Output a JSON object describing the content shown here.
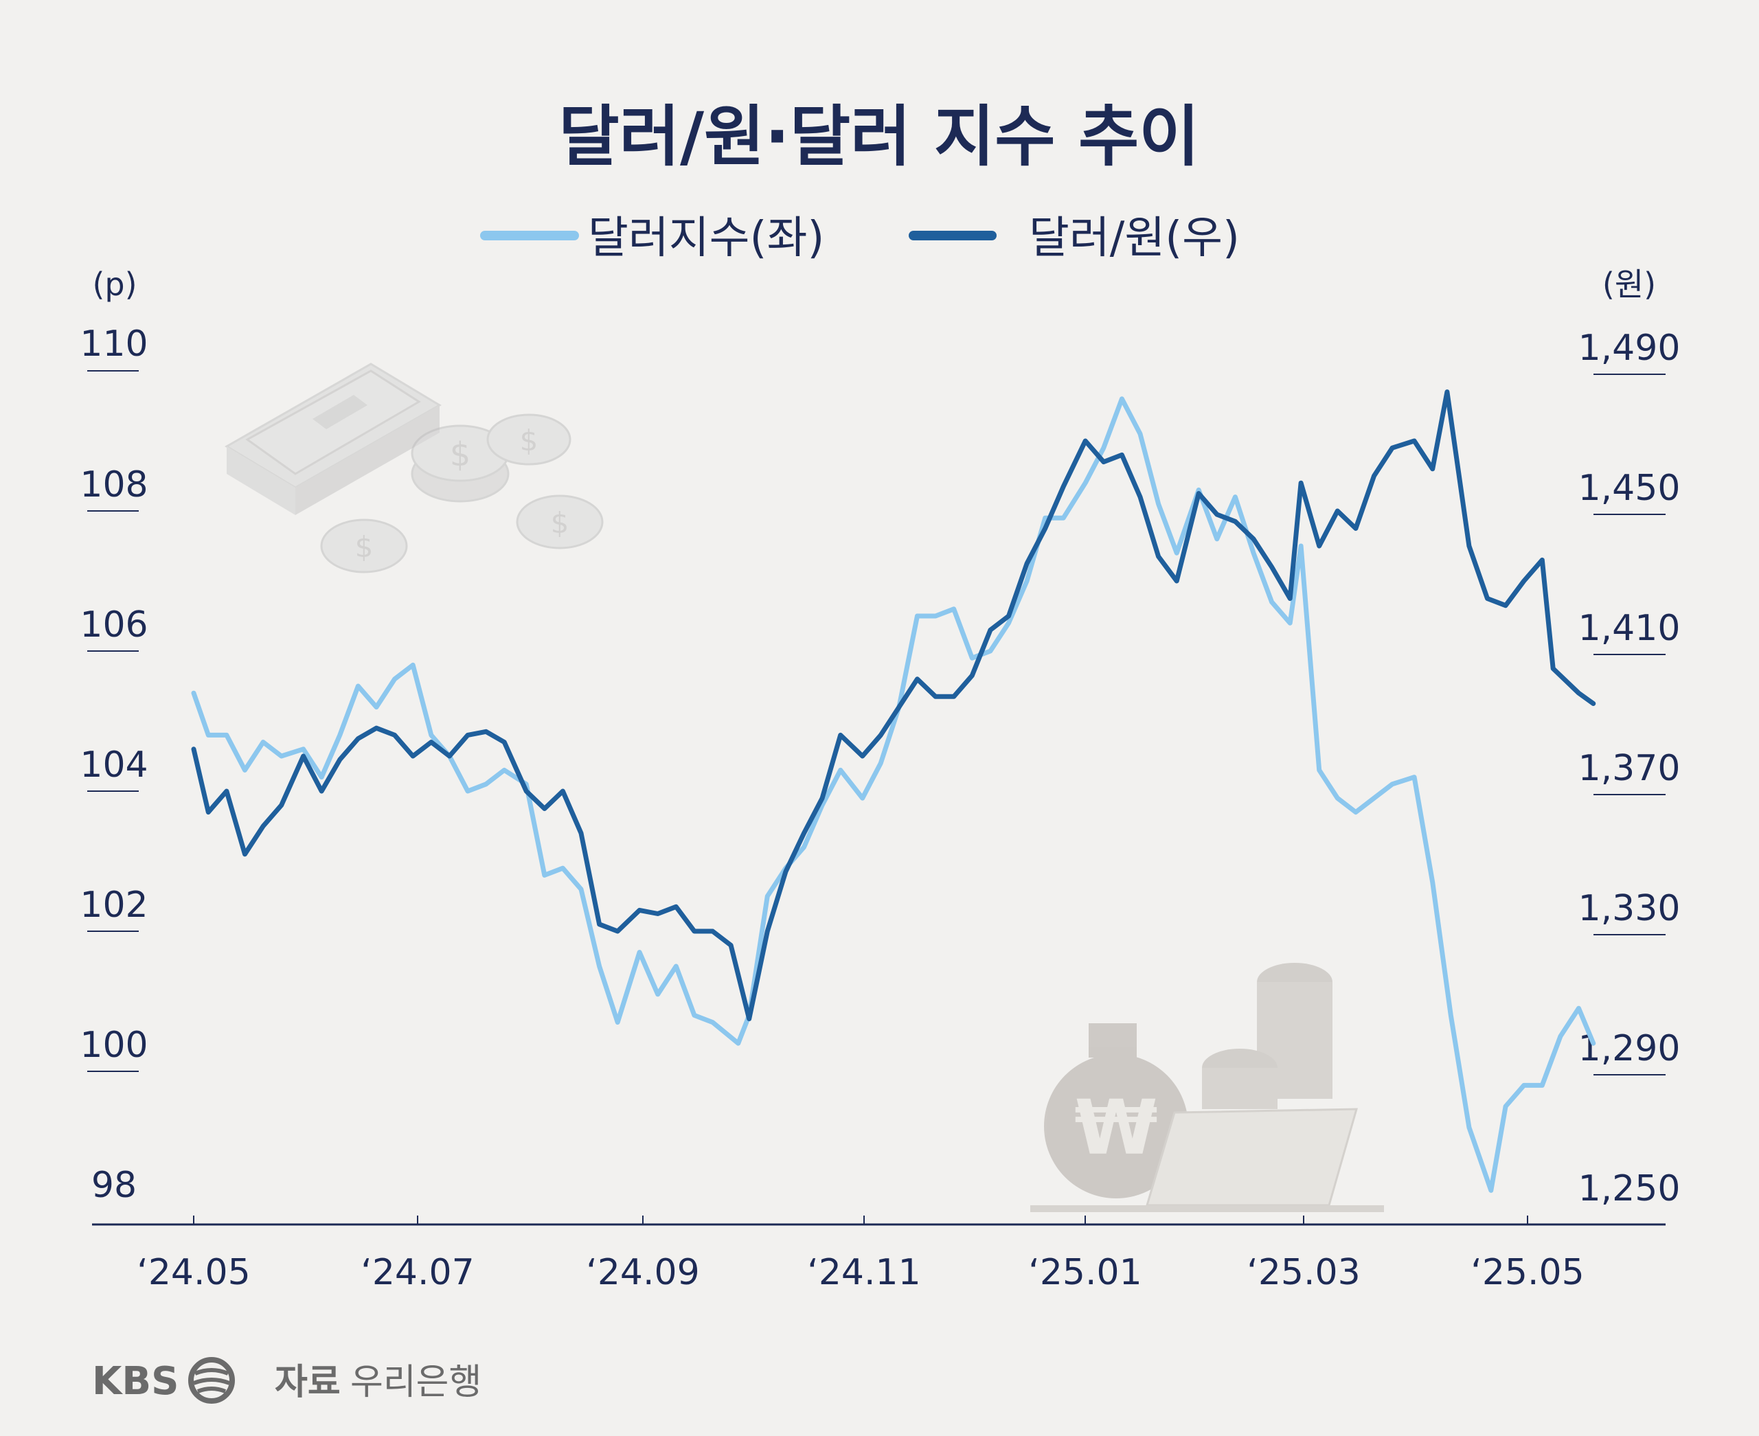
{
  "title": "달러/원·달러 지수 추이",
  "legend": [
    {
      "label": "달러지수(좌)",
      "color": "#8cc7ee"
    },
    {
      "label": "달러/원(우)",
      "color": "#1f5f9c"
    }
  ],
  "left_unit": "(p)",
  "right_unit": "(원)",
  "left_ticks": [
    "110",
    "108",
    "106",
    "104",
    "102",
    "100",
    "98"
  ],
  "right_ticks": [
    "1,490",
    "1,450",
    "1,410",
    "1,370",
    "1,330",
    "1,290",
    "1,250"
  ],
  "x_ticks": [
    "‘24.05",
    "‘24.07",
    "‘24.09",
    "‘24.11",
    "‘25.01",
    "‘25.03",
    "‘25.05"
  ],
  "footer": {
    "logo": "KBS",
    "source_label": "자료",
    "source_name": "우리은행"
  },
  "colors": {
    "background": "#f2f1ef",
    "text": "#1d2a55",
    "dollar_index": "#8cc7ee",
    "usd_krw": "#1f5f9c"
  },
  "chart_data": {
    "type": "line",
    "title": "달러/원·달러 지수 추이",
    "x_labels": [
      "‘24.05",
      "‘24.07",
      "‘24.09",
      "‘24.11",
      "‘25.01",
      "‘25.03",
      "‘25.05"
    ],
    "y_left": {
      "label": "(p)",
      "range": [
        98,
        110
      ]
    },
    "y_right": {
      "label": "(원)",
      "range": [
        1250,
        1490
      ]
    },
    "grid": false,
    "legend_position": "top-center",
    "series": [
      {
        "name": "달러지수(좌)",
        "axis": "left",
        "points": [
          [
            "2024-05-01",
            105.4
          ],
          [
            "2024-05-05",
            104.8
          ],
          [
            "2024-05-10",
            104.8
          ],
          [
            "2024-05-15",
            104.3
          ],
          [
            "2024-05-20",
            104.7
          ],
          [
            "2024-05-25",
            104.5
          ],
          [
            "2024-05-31",
            104.6
          ],
          [
            "2024-06-05",
            104.2
          ],
          [
            "2024-06-10",
            104.8
          ],
          [
            "2024-06-15",
            105.5
          ],
          [
            "2024-06-20",
            105.2
          ],
          [
            "2024-06-25",
            105.6
          ],
          [
            "2024-06-30",
            105.8
          ],
          [
            "2024-07-05",
            104.8
          ],
          [
            "2024-07-10",
            104.5
          ],
          [
            "2024-07-15",
            104.0
          ],
          [
            "2024-07-20",
            104.1
          ],
          [
            "2024-07-25",
            104.3
          ],
          [
            "2024-07-31",
            104.1
          ],
          [
            "2024-08-05",
            102.8
          ],
          [
            "2024-08-10",
            102.9
          ],
          [
            "2024-08-15",
            102.6
          ],
          [
            "2024-08-20",
            101.5
          ],
          [
            "2024-08-25",
            100.7
          ],
          [
            "2024-08-31",
            101.7
          ],
          [
            "2024-09-05",
            101.1
          ],
          [
            "2024-09-10",
            101.5
          ],
          [
            "2024-09-15",
            100.8
          ],
          [
            "2024-09-20",
            100.7
          ],
          [
            "2024-09-27",
            100.4
          ],
          [
            "2024-09-30",
            100.8
          ],
          [
            "2024-10-05",
            102.5
          ],
          [
            "2024-10-10",
            102.9
          ],
          [
            "2024-10-15",
            103.2
          ],
          [
            "2024-10-20",
            103.8
          ],
          [
            "2024-10-25",
            104.3
          ],
          [
            "2024-10-31",
            103.9
          ],
          [
            "2024-11-05",
            104.4
          ],
          [
            "2024-11-10",
            105.2
          ],
          [
            "2024-11-15",
            106.5
          ],
          [
            "2024-11-20",
            106.5
          ],
          [
            "2024-11-25",
            106.6
          ],
          [
            "2024-11-30",
            105.9
          ],
          [
            "2024-12-05",
            106.0
          ],
          [
            "2024-12-10",
            106.4
          ],
          [
            "2024-12-15",
            107.0
          ],
          [
            "2024-12-20",
            107.9
          ],
          [
            "2024-12-25",
            107.9
          ],
          [
            "2024-12-31",
            108.4
          ],
          [
            "2025-01-05",
            108.9
          ],
          [
            "2025-01-10",
            109.6
          ],
          [
            "2025-01-15",
            109.1
          ],
          [
            "2025-01-20",
            108.1
          ],
          [
            "2025-01-25",
            107.4
          ],
          [
            "2025-01-31",
            108.3
          ],
          [
            "2025-02-05",
            107.6
          ],
          [
            "2025-02-10",
            108.2
          ],
          [
            "2025-02-15",
            107.4
          ],
          [
            "2025-02-20",
            106.7
          ],
          [
            "2025-02-25",
            106.4
          ],
          [
            "2025-02-28",
            107.5
          ],
          [
            "2025-03-05",
            104.3
          ],
          [
            "2025-03-10",
            103.9
          ],
          [
            "2025-03-15",
            103.7
          ],
          [
            "2025-03-20",
            103.9
          ],
          [
            "2025-03-25",
            104.1
          ],
          [
            "2025-03-31",
            104.2
          ],
          [
            "2025-04-05",
            102.7
          ],
          [
            "2025-04-10",
            100.8
          ],
          [
            "2025-04-15",
            99.2
          ],
          [
            "2025-04-21",
            98.3
          ],
          [
            "2025-04-25",
            99.5
          ],
          [
            "2025-04-30",
            99.8
          ],
          [
            "2025-05-05",
            99.8
          ],
          [
            "2025-05-10",
            100.5
          ],
          [
            "2025-05-15",
            100.9
          ],
          [
            "2025-05-19",
            100.4
          ]
        ]
      },
      {
        "name": "달러/원(우)",
        "axis": "right",
        "points": [
          [
            "2024-05-01",
            1382
          ],
          [
            "2024-05-05",
            1364
          ],
          [
            "2024-05-10",
            1370
          ],
          [
            "2024-05-15",
            1352
          ],
          [
            "2024-05-20",
            1360
          ],
          [
            "2024-05-25",
            1366
          ],
          [
            "2024-05-31",
            1380
          ],
          [
            "2024-06-05",
            1370
          ],
          [
            "2024-06-10",
            1379
          ],
          [
            "2024-06-15",
            1385
          ],
          [
            "2024-06-20",
            1388
          ],
          [
            "2024-06-25",
            1386
          ],
          [
            "2024-06-30",
            1380
          ],
          [
            "2024-07-05",
            1384
          ],
          [
            "2024-07-10",
            1380
          ],
          [
            "2024-07-15",
            1386
          ],
          [
            "2024-07-20",
            1387
          ],
          [
            "2024-07-25",
            1384
          ],
          [
            "2024-07-31",
            1370
          ],
          [
            "2024-08-05",
            1365
          ],
          [
            "2024-08-10",
            1370
          ],
          [
            "2024-08-15",
            1358
          ],
          [
            "2024-08-20",
            1332
          ],
          [
            "2024-08-25",
            1330
          ],
          [
            "2024-08-31",
            1336
          ],
          [
            "2024-09-05",
            1335
          ],
          [
            "2024-09-10",
            1337
          ],
          [
            "2024-09-15",
            1330
          ],
          [
            "2024-09-20",
            1330
          ],
          [
            "2024-09-25",
            1326
          ],
          [
            "2024-09-30",
            1305
          ],
          [
            "2024-10-05",
            1330
          ],
          [
            "2024-10-10",
            1347
          ],
          [
            "2024-10-15",
            1358
          ],
          [
            "2024-10-20",
            1368
          ],
          [
            "2024-10-25",
            1386
          ],
          [
            "2024-10-31",
            1380
          ],
          [
            "2024-11-05",
            1386
          ],
          [
            "2024-11-10",
            1394
          ],
          [
            "2024-11-15",
            1402
          ],
          [
            "2024-11-20",
            1397
          ],
          [
            "2024-11-25",
            1397
          ],
          [
            "2024-11-30",
            1403
          ],
          [
            "2024-12-05",
            1416
          ],
          [
            "2024-12-10",
            1420
          ],
          [
            "2024-12-15",
            1435
          ],
          [
            "2024-12-20",
            1445
          ],
          [
            "2024-12-25",
            1457
          ],
          [
            "2024-12-31",
            1470
          ],
          [
            "2025-01-05",
            1464
          ],
          [
            "2025-01-10",
            1466
          ],
          [
            "2025-01-15",
            1454
          ],
          [
            "2025-01-20",
            1437
          ],
          [
            "2025-01-25",
            1430
          ],
          [
            "2025-01-31",
            1455
          ],
          [
            "2025-02-05",
            1449
          ],
          [
            "2025-02-10",
            1447
          ],
          [
            "2025-02-15",
            1442
          ],
          [
            "2025-02-20",
            1434
          ],
          [
            "2025-02-25",
            1425
          ],
          [
            "2025-02-28",
            1458
          ],
          [
            "2025-03-05",
            1440
          ],
          [
            "2025-03-10",
            1450
          ],
          [
            "2025-03-15",
            1445
          ],
          [
            "2025-03-20",
            1460
          ],
          [
            "2025-03-25",
            1468
          ],
          [
            "2025-03-31",
            1470
          ],
          [
            "2025-04-05",
            1462
          ],
          [
            "2025-04-09",
            1484
          ],
          [
            "2025-04-15",
            1440
          ],
          [
            "2025-04-20",
            1425
          ],
          [
            "2025-04-25",
            1423
          ],
          [
            "2025-04-30",
            1430
          ],
          [
            "2025-05-05",
            1436
          ],
          [
            "2025-05-08",
            1405
          ],
          [
            "2025-05-15",
            1398
          ],
          [
            "2025-05-19",
            1395
          ]
        ]
      }
    ]
  }
}
